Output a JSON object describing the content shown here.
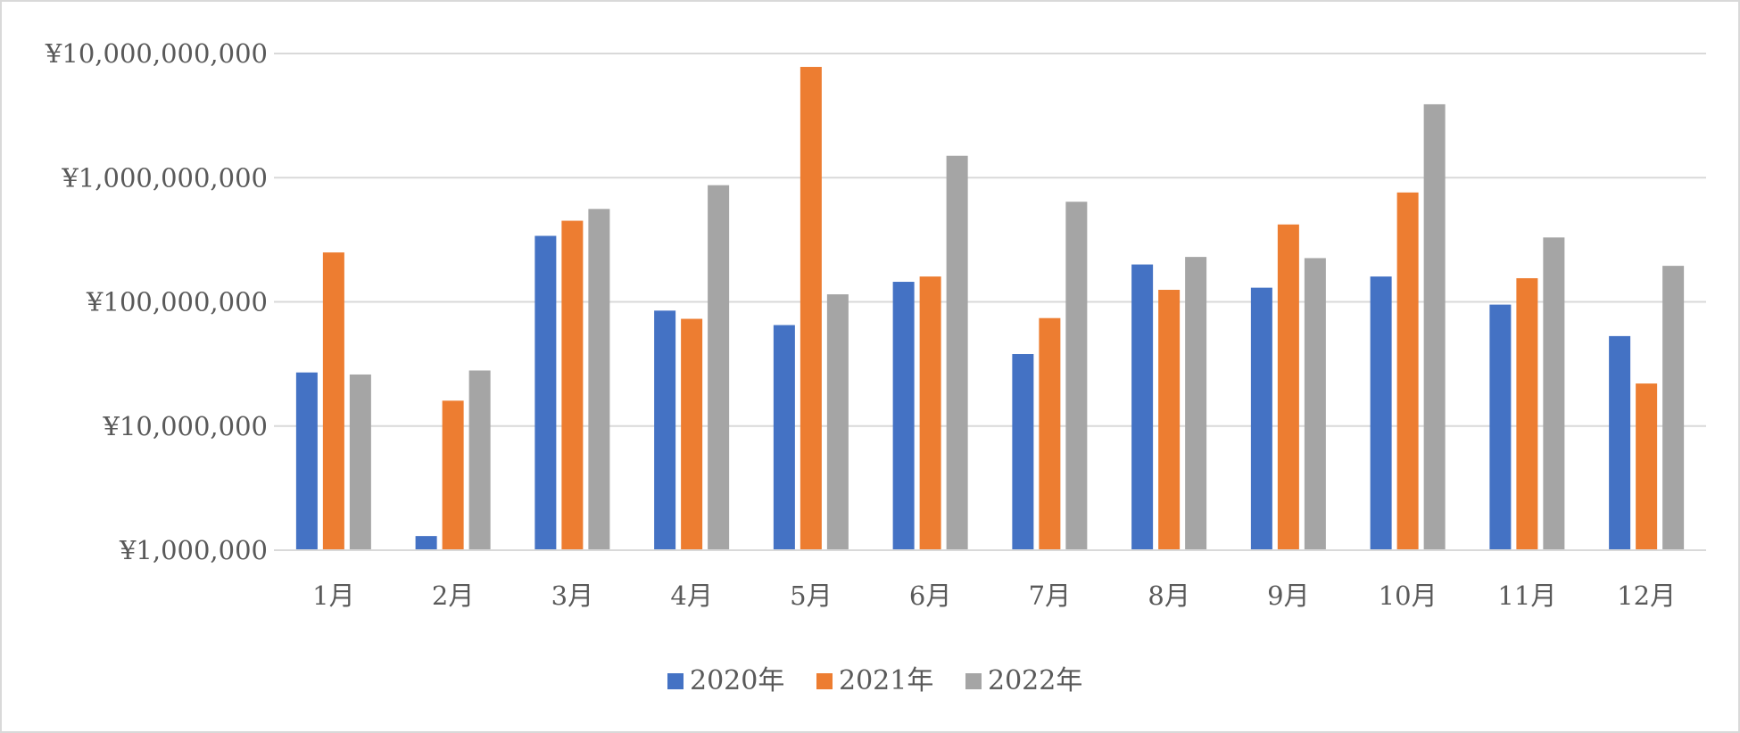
{
  "chart_data": {
    "type": "bar",
    "title": "",
    "xlabel": "",
    "ylabel": "",
    "y_scale": "log",
    "ylim": [
      1000000,
      10000000000
    ],
    "y_ticks": [
      1000000,
      10000000,
      100000000,
      1000000000,
      10000000000
    ],
    "y_tick_labels": [
      "¥1,000,000",
      "¥10,000,000",
      "¥100,000,000",
      "¥1,000,000,000",
      "¥10,000,000,000"
    ],
    "grid": true,
    "legend_position": "bottom",
    "categories": [
      "1月",
      "2月",
      "3月",
      "4月",
      "5月",
      "6月",
      "7月",
      "8月",
      "9月",
      "10月",
      "11月",
      "12月"
    ],
    "series": [
      {
        "name": "2020年",
        "color": "#4472c4",
        "values": [
          27000000,
          1300000,
          340000000,
          85000000,
          65000000,
          145000000,
          38000000,
          200000000,
          130000000,
          160000000,
          95000000,
          53000000
        ]
      },
      {
        "name": "2021年",
        "color": "#ed7d31",
        "values": [
          250000000,
          16000000,
          450000000,
          73000000,
          7800000000,
          160000000,
          74000000,
          125000000,
          420000000,
          760000000,
          155000000,
          22000000
        ]
      },
      {
        "name": "2022年",
        "color": "#a5a5a5",
        "values": [
          26000000,
          28000000,
          560000000,
          870000000,
          115000000,
          1500000000,
          640000000,
          230000000,
          225000000,
          3900000000,
          330000000,
          195000000
        ]
      }
    ]
  }
}
